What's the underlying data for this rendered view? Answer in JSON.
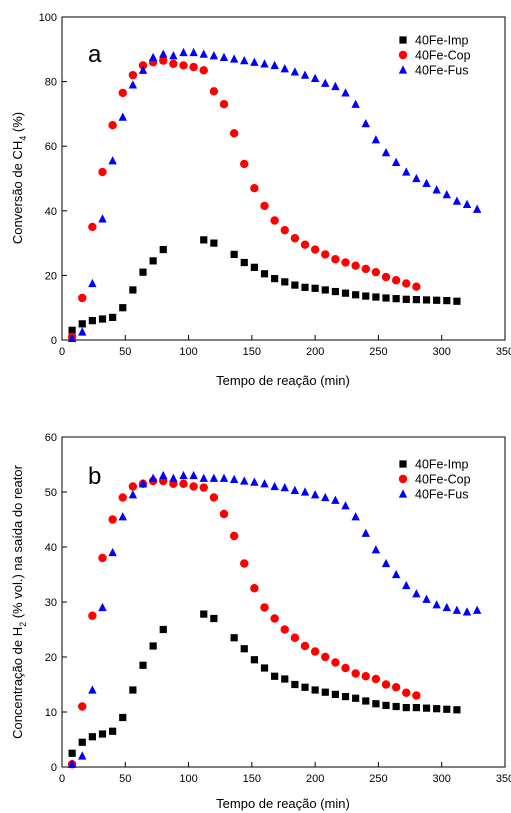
{
  "chart_data": [
    {
      "type": "scatter",
      "panel_label": "a",
      "xlabel": "Tempo de reação (min)",
      "ylabel_main": "Conversão de CH",
      "ylabel_sub": "4",
      "ylabel_tail": " (%)",
      "xlim": [
        0,
        350
      ],
      "ylim": [
        0,
        100
      ],
      "xticks": [
        0,
        50,
        100,
        150,
        200,
        250,
        300,
        350
      ],
      "yticks": [
        0,
        20,
        40,
        60,
        80,
        100
      ],
      "legend_position": "top-right",
      "series": [
        {
          "name": "40Fe-Imp",
          "marker": "square",
          "color": "#000000",
          "x": [
            8,
            16,
            24,
            32,
            40,
            48,
            56,
            64,
            72,
            80,
            112,
            120,
            136,
            144,
            152,
            160,
            168,
            176,
            184,
            192,
            200,
            208,
            216,
            224,
            232,
            240,
            248,
            256,
            264,
            272,
            280,
            288,
            296,
            304,
            312
          ],
          "y": [
            3,
            5,
            6,
            6.5,
            7,
            10,
            15.5,
            21,
            24.5,
            28,
            31,
            30,
            26.5,
            24,
            22.5,
            20.5,
            19,
            18,
            17,
            16.3,
            16,
            15.5,
            15,
            14.5,
            14,
            13.6,
            13.3,
            13,
            12.8,
            12.6,
            12.5,
            12.4,
            12.3,
            12.2,
            12
          ]
        },
        {
          "name": "40Fe-Cop",
          "marker": "circle",
          "color": "#ff0000",
          "x": [
            8,
            16,
            24,
            32,
            40,
            48,
            56,
            64,
            72,
            80,
            88,
            96,
            104,
            112,
            120,
            128,
            136,
            144,
            152,
            160,
            168,
            176,
            184,
            192,
            200,
            208,
            216,
            224,
            232,
            240,
            248,
            256,
            264,
            272,
            280
          ],
          "y": [
            1,
            13,
            35,
            52,
            66.5,
            76.5,
            82,
            85,
            86,
            86.5,
            85.5,
            85,
            84.5,
            83.5,
            77,
            73,
            64,
            54.5,
            47,
            41.5,
            37,
            34,
            31.5,
            29.5,
            28,
            26.5,
            25,
            24,
            23,
            22,
            21,
            19.5,
            18.5,
            17.5,
            16.5
          ]
        },
        {
          "name": "40Fe-Fus",
          "marker": "triangle",
          "color": "#0000ff",
          "x": [
            8,
            16,
            24,
            32,
            40,
            48,
            56,
            64,
            72,
            80,
            88,
            96,
            104,
            112,
            120,
            128,
            136,
            144,
            152,
            160,
            168,
            176,
            184,
            192,
            200,
            208,
            216,
            224,
            232,
            240,
            248,
            256,
            264,
            272,
            280,
            288,
            296,
            304,
            312,
            320,
            328
          ],
          "y": [
            0.5,
            2.5,
            17.5,
            37.5,
            55.5,
            69,
            79,
            83.5,
            87.5,
            88.5,
            88,
            89,
            89,
            88.5,
            88,
            87.5,
            87,
            86.5,
            86,
            85.5,
            85,
            84,
            83,
            82,
            81,
            79.5,
            78.5,
            76.5,
            73,
            67,
            62,
            58,
            55,
            52,
            50,
            48.5,
            46.5,
            45,
            43,
            42,
            40.5
          ]
        }
      ]
    },
    {
      "type": "scatter",
      "panel_label": "b",
      "xlabel": "Tempo de reação (min)",
      "ylabel_main": "Concentração de H",
      "ylabel_sub": "2",
      "ylabel_tail": " (% vol.) na saída do reator",
      "xlim": [
        0,
        350
      ],
      "ylim": [
        0,
        60
      ],
      "xticks": [
        0,
        50,
        100,
        150,
        200,
        250,
        300,
        350
      ],
      "yticks": [
        0,
        10,
        20,
        30,
        40,
        50,
        60
      ],
      "legend_position": "top-right",
      "series": [
        {
          "name": "40Fe-Imp",
          "marker": "square",
          "color": "#000000",
          "x": [
            8,
            16,
            24,
            32,
            40,
            48,
            56,
            64,
            72,
            80,
            112,
            120,
            136,
            144,
            152,
            160,
            168,
            176,
            184,
            192,
            200,
            208,
            216,
            224,
            232,
            240,
            248,
            256,
            264,
            272,
            280,
            288,
            296,
            304,
            312
          ],
          "y": [
            2.5,
            4.5,
            5.5,
            6,
            6.5,
            9,
            14,
            18.5,
            22,
            25,
            27.8,
            27,
            23.5,
            21.5,
            19.5,
            18,
            16.5,
            16,
            15,
            14.5,
            14,
            13.6,
            13.2,
            12.8,
            12.5,
            12,
            11.5,
            11.2,
            11,
            10.8,
            10.8,
            10.7,
            10.6,
            10.5,
            10.4
          ]
        },
        {
          "name": "40Fe-Cop",
          "marker": "circle",
          "color": "#ff0000",
          "x": [
            8,
            16,
            24,
            32,
            40,
            48,
            56,
            64,
            72,
            80,
            88,
            96,
            104,
            112,
            120,
            128,
            136,
            144,
            152,
            160,
            168,
            176,
            184,
            192,
            200,
            208,
            216,
            224,
            232,
            240,
            248,
            256,
            264,
            272,
            280
          ],
          "y": [
            0.5,
            11,
            27.5,
            38,
            45,
            49,
            51,
            51.5,
            52,
            52,
            51.5,
            51.5,
            51,
            50.8,
            49,
            46,
            42,
            37,
            32.5,
            29,
            27,
            25,
            23.5,
            22,
            21,
            20,
            19,
            18,
            17,
            16.5,
            16,
            15,
            14.5,
            13.5,
            13
          ]
        },
        {
          "name": "40Fe-Fus",
          "marker": "triangle",
          "color": "#0000ff",
          "x": [
            8,
            16,
            24,
            32,
            40,
            48,
            56,
            64,
            72,
            80,
            88,
            96,
            104,
            112,
            120,
            128,
            136,
            144,
            152,
            160,
            168,
            176,
            184,
            192,
            200,
            208,
            216,
            224,
            232,
            240,
            248,
            256,
            264,
            272,
            280,
            288,
            296,
            304,
            312,
            320,
            328
          ],
          "y": [
            0.5,
            2,
            14,
            29,
            39,
            45.5,
            49.5,
            51.5,
            52.5,
            53,
            52.5,
            53,
            53,
            52.5,
            52.5,
            52.5,
            52.3,
            52,
            51.8,
            51.5,
            51,
            50.8,
            50.3,
            50,
            49.5,
            49,
            48.5,
            47.5,
            45.5,
            42.5,
            39.5,
            37,
            35,
            33,
            31.5,
            30.5,
            29.5,
            29,
            28.5,
            28.2,
            28.5
          ]
        }
      ]
    }
  ]
}
